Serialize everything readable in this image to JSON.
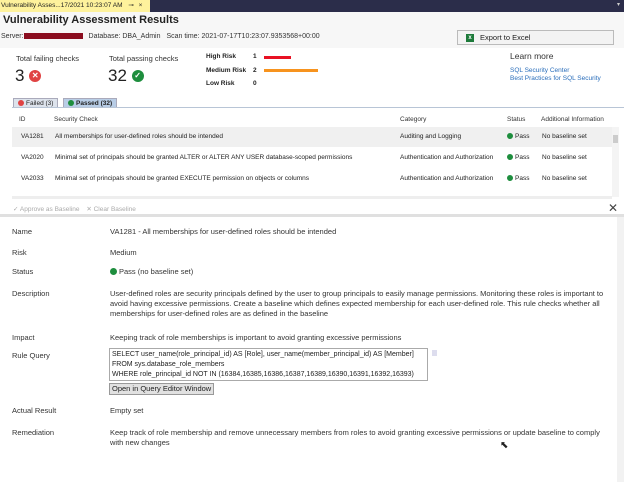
{
  "window": {
    "tab_title": "Vulnerability Asses...17/2021 10:23:07 AM",
    "pin": "⊸",
    "close": "×"
  },
  "header": {
    "title": "Vulnerability Assessment Results",
    "server_label": "Server:",
    "database": "Database: DBA_Admin",
    "scan_time": "Scan time: 2021-07-17T10:23:07.9353568+00:00",
    "export_label": "Export to Excel"
  },
  "summary": {
    "failing_label": "Total failing checks",
    "failing_count": "3",
    "passing_label": "Total passing checks",
    "passing_count": "32",
    "risks": [
      {
        "label": "High Risk",
        "count": "1",
        "value": 1,
        "color": "#e81123"
      },
      {
        "label": "Medium Risk",
        "count": "2",
        "value": 2,
        "color": "#f7931e"
      },
      {
        "label": "Low Risk",
        "count": "0",
        "value": 0,
        "color": "#aaaaaa"
      }
    ],
    "learn_more": "Learn more",
    "links": [
      "SQL Security Center",
      "Best Practices for SQL Security"
    ]
  },
  "tabs": [
    {
      "label": "Failed (3)"
    },
    {
      "label": "Passed (32)",
      "active": true
    }
  ],
  "table": {
    "columns": [
      "ID",
      "Security Check",
      "Category",
      "Status",
      "Additional Information"
    ],
    "rows": [
      {
        "id": "VA1281",
        "check": "All memberships for user-defined roles should be intended",
        "category": "Auditing and Logging",
        "status": "Pass",
        "info": "No baseline set"
      },
      {
        "id": "VA2020",
        "check": "Minimal set of principals should be granted ALTER or ALTER ANY USER database-scoped permissions",
        "category": "Authentication and Authorization",
        "status": "Pass",
        "info": "No baseline set"
      },
      {
        "id": "VA2033",
        "check": "Minimal set of principals should be granted EXECUTE permission on objects or columns",
        "category": "Authentication and Authorization",
        "status": "Pass",
        "info": "No baseline set"
      }
    ]
  },
  "toolbar": {
    "approve": "Approve as Baseline",
    "clear": "Clear Baseline"
  },
  "details": {
    "name_label": "Name",
    "name": "VA1281 - All memberships for user-defined roles should be intended",
    "risk_label": "Risk",
    "risk": "Medium",
    "status_label": "Status",
    "status": "Pass (no baseline set)",
    "description_label": "Description",
    "description": "User-defined roles are security principals defined by the user to group principals to easily manage permissions. Monitoring these roles is important to avoid having excessive permissions. Create a baseline which defines expected membership for each user-defined role. This rule checks whether all memberships for user-defined roles are as defined in the baseline",
    "impact_label": "Impact",
    "impact": "Keeping track of role memberships is important to avoid granting excessive permissions",
    "query_label": "Rule Query",
    "query_lines": [
      "SELECT user_name(role_principal_id) AS [Role], user_name(member_principal_id) AS [Member]",
      "FROM sys.database_role_members",
      "WHERE role_principal_id NOT IN (16384,16385,16386,16387,16389,16390,16391,16392,16393)"
    ],
    "open_query": "Open in Query Editor Window",
    "actual_label": "Actual Result",
    "actual": "Empty set",
    "remediation_label": "Remediation",
    "remediation": "Keep track of role membership and remove unnecessary members from roles to avoid granting excessive permissions or update baseline to comply with new changes"
  }
}
